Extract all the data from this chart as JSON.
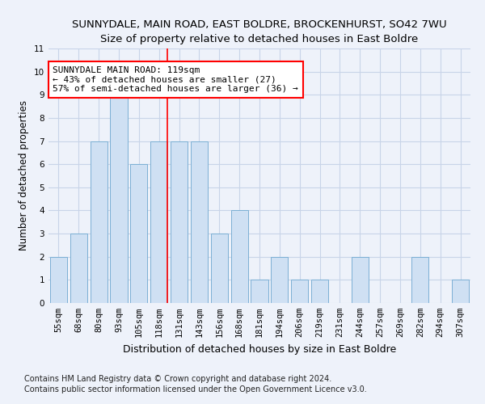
{
  "title": "SUNNYDALE, MAIN ROAD, EAST BOLDRE, BROCKENHURST, SO42 7WU",
  "subtitle": "Size of property relative to detached houses in East Boldre",
  "xlabel": "Distribution of detached houses by size in East Boldre",
  "ylabel": "Number of detached properties",
  "categories": [
    "55sqm",
    "68sqm",
    "80sqm",
    "93sqm",
    "105sqm",
    "118sqm",
    "131sqm",
    "143sqm",
    "156sqm",
    "168sqm",
    "181sqm",
    "194sqm",
    "206sqm",
    "219sqm",
    "231sqm",
    "244sqm",
    "257sqm",
    "269sqm",
    "282sqm",
    "294sqm",
    "307sqm"
  ],
  "values": [
    2,
    3,
    7,
    9,
    6,
    7,
    7,
    7,
    3,
    4,
    1,
    2,
    1,
    1,
    0,
    2,
    0,
    0,
    2,
    0,
    1
  ],
  "bar_color": "#cfe0f3",
  "bar_edge_color": "#7bafd4",
  "red_line_index": 5.43,
  "annotation_line1": "SUNNYDALE MAIN ROAD: 119sqm",
  "annotation_line2": "← 43% of detached houses are smaller (27)",
  "annotation_line3": "57% of semi-detached houses are larger (36) →",
  "annotation_box_color": "white",
  "annotation_box_edge_color": "red",
  "ylim": [
    0,
    11
  ],
  "yticks": [
    0,
    1,
    2,
    3,
    4,
    5,
    6,
    7,
    8,
    9,
    10,
    11
  ],
  "grid_color": "#c8d4e8",
  "footnote1": "Contains HM Land Registry data © Crown copyright and database right 2024.",
  "footnote2": "Contains public sector information licensed under the Open Government Licence v3.0.",
  "title_fontsize": 9.5,
  "xlabel_fontsize": 9,
  "ylabel_fontsize": 8.5,
  "tick_fontsize": 7.5,
  "annotation_fontsize": 8,
  "footnote_fontsize": 7,
  "background_color": "#eef2fa"
}
